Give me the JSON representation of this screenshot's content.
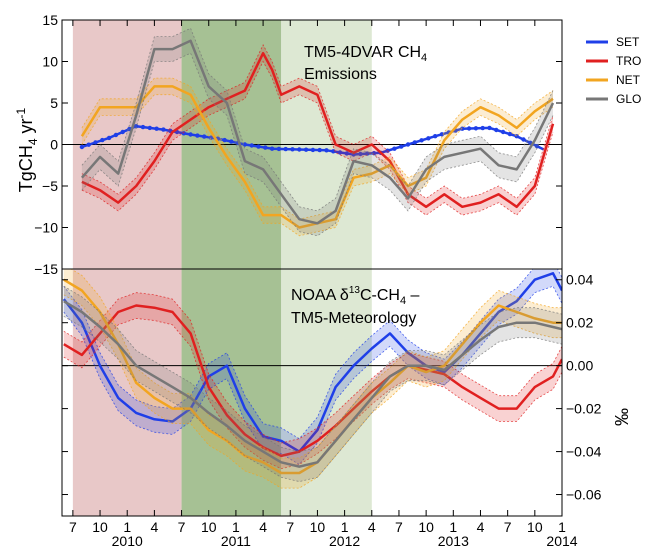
{
  "chart_data": [
    {
      "type": "line",
      "panel": "top",
      "annotation": [
        "TM5-4DVAR CH",
        "4",
        "Emissions"
      ],
      "ylabel": [
        "TgCH",
        "4",
        " yr",
        "-1"
      ],
      "ylim": [
        -15,
        15
      ],
      "yticks": [
        15,
        10,
        5,
        0,
        -5,
        -10,
        -15
      ],
      "ytick_labels": [
        "15",
        "10",
        "5",
        "0",
        "−5",
        "−10",
        "−15"
      ],
      "ytick_side": "left",
      "grid": false,
      "zero_line": true,
      "legend_placement": "outside-right",
      "shaded_periods": [
        {
          "start": 2009.5,
          "end": 2010.5,
          "color": "#e8c8c8"
        },
        {
          "start": 2010.5,
          "end": 2011.417,
          "color": "#a6c194"
        },
        {
          "start": 2011.417,
          "end": 2012.25,
          "color": "#dde8d3"
        }
      ],
      "series": [
        {
          "name": "SET",
          "color": "#1f3fe8",
          "style": "dots",
          "band": 0.0,
          "x": [
            2009.583,
            2009.833,
            2010.083,
            2010.333,
            2010.583,
            2010.833,
            2011.083,
            2011.333,
            2011.583,
            2011.833,
            2012.083,
            2012.333,
            2012.583,
            2012.833,
            2013.083,
            2013.333,
            2013.583,
            2013.833
          ],
          "y": [
            -0.3,
            0.8,
            2.2,
            1.8,
            1.2,
            0.7,
            0.0,
            -0.5,
            -0.6,
            -0.7,
            -1.2,
            -1.0,
            0.0,
            1.0,
            1.9,
            2.0,
            1.0,
            -0.6
          ]
        },
        {
          "name": "TRO",
          "color": "#e02020",
          "style": "solid",
          "band": 1.0,
          "x": [
            2009.583,
            2009.75,
            2009.917,
            2010.083,
            2010.25,
            2010.417,
            2010.583,
            2010.75,
            2010.917,
            2011.083,
            2011.25,
            2011.333,
            2011.417,
            2011.583,
            2011.75,
            2011.917,
            2012.083,
            2012.25,
            2012.417,
            2012.583,
            2012.75,
            2012.917,
            2013.083,
            2013.25,
            2013.417,
            2013.583,
            2013.75,
            2013.917
          ],
          "y": [
            -4.5,
            -5.5,
            -7.0,
            -5.0,
            -2.0,
            1.5,
            3.0,
            4.5,
            5.5,
            6.5,
            11.0,
            9.0,
            6.0,
            7.0,
            6.0,
            0.0,
            -1.0,
            0.0,
            -2.0,
            -6.0,
            -7.5,
            -6.0,
            -7.5,
            -7.0,
            -6.0,
            -7.5,
            -5.0,
            2.5
          ]
        },
        {
          "name": "NET",
          "color": "#f2a520",
          "style": "solid",
          "band": 1.0,
          "x": [
            2009.583,
            2009.75,
            2009.917,
            2010.083,
            2010.25,
            2010.417,
            2010.583,
            2010.75,
            2010.917,
            2011.083,
            2011.25,
            2011.417,
            2011.583,
            2011.75,
            2011.917,
            2012.083,
            2012.25,
            2012.417,
            2012.583,
            2012.75,
            2012.917,
            2013.083,
            2013.25,
            2013.417,
            2013.583,
            2013.75,
            2013.917
          ],
          "y": [
            1.0,
            4.5,
            4.5,
            4.5,
            7.0,
            7.0,
            6.0,
            2.0,
            -1.5,
            -4.5,
            -8.5,
            -8.5,
            -10.0,
            -9.5,
            -9.0,
            -4.0,
            -3.5,
            -2.5,
            -5.0,
            -4.0,
            0.5,
            3.0,
            4.5,
            3.5,
            2.0,
            4.0,
            5.5
          ]
        },
        {
          "name": "GLO",
          "color": "#777777",
          "style": "solid",
          "band": 1.5,
          "x": [
            2009.583,
            2009.75,
            2009.917,
            2010.083,
            2010.25,
            2010.417,
            2010.583,
            2010.75,
            2010.917,
            2011.083,
            2011.25,
            2011.417,
            2011.583,
            2011.75,
            2011.917,
            2012.083,
            2012.25,
            2012.417,
            2012.583,
            2012.75,
            2012.917,
            2013.083,
            2013.25,
            2013.417,
            2013.583,
            2013.75,
            2013.917
          ],
          "y": [
            -4.0,
            -1.5,
            -3.5,
            3.5,
            11.5,
            11.5,
            12.5,
            7.0,
            5.0,
            -2.0,
            -3.0,
            -6.0,
            -9.0,
            -9.5,
            -8.0,
            -2.0,
            -2.5,
            -4.0,
            -6.5,
            -3.0,
            -1.5,
            -1.0,
            -0.5,
            -2.5,
            -3.0,
            0.5,
            5.0
          ]
        }
      ]
    },
    {
      "type": "line",
      "panel": "bottom",
      "annotation": [
        "NOAA δ",
        "13",
        "C-CH",
        "4",
        " –",
        "TM5-Meteorology"
      ],
      "ylabel": "‰",
      "ylim": [
        -0.07,
        0.045
      ],
      "yticks": [
        0.04,
        0.02,
        0.0,
        -0.02,
        -0.04,
        -0.06
      ],
      "ytick_labels": [
        "0.04",
        "0.02",
        "0.00",
        "−0.02",
        "−0.04",
        "−0.06"
      ],
      "ytick_side": "right",
      "grid": false,
      "zero_line": true,
      "x_major_ticks": [
        {
          "x": 2009.5,
          "label": "7"
        },
        {
          "x": 2009.75,
          "label": "10"
        },
        {
          "x": 2010.0,
          "label": "1"
        },
        {
          "x": 2010.25,
          "label": "4"
        },
        {
          "x": 2010.5,
          "label": "7"
        },
        {
          "x": 2010.75,
          "label": "10"
        },
        {
          "x": 2011.0,
          "label": "1"
        },
        {
          "x": 2011.25,
          "label": "4"
        },
        {
          "x": 2011.5,
          "label": "7"
        },
        {
          "x": 2011.75,
          "label": "10"
        },
        {
          "x": 2012.0,
          "label": "1"
        },
        {
          "x": 2012.25,
          "label": "4"
        },
        {
          "x": 2012.5,
          "label": "7"
        },
        {
          "x": 2012.75,
          "label": "10"
        },
        {
          "x": 2013.0,
          "label": "1"
        },
        {
          "x": 2013.25,
          "label": "4"
        },
        {
          "x": 2013.5,
          "label": "7"
        },
        {
          "x": 2013.75,
          "label": "10"
        },
        {
          "x": 2014.0,
          "label": "1"
        }
      ],
      "year_labels": [
        {
          "x": 2010.0,
          "label": "2010"
        },
        {
          "x": 2011.0,
          "label": "2011"
        },
        {
          "x": 2012.0,
          "label": "2012"
        },
        {
          "x": 2013.0,
          "label": "2013"
        },
        {
          "x": 2014.0,
          "label": "2014"
        }
      ],
      "xlim": [
        2009.4,
        2014.0
      ],
      "series": [
        {
          "name": "SET",
          "color": "#1f3fe8",
          "band": 0.006,
          "x": [
            2009.417,
            2009.583,
            2009.75,
            2009.917,
            2010.083,
            2010.25,
            2010.417,
            2010.583,
            2010.75,
            2010.917,
            2011.083,
            2011.25,
            2011.417,
            2011.583,
            2011.75,
            2011.917,
            2012.083,
            2012.25,
            2012.417,
            2012.583,
            2012.75,
            2012.917,
            2013.083,
            2013.25,
            2013.417,
            2013.583,
            2013.75,
            2013.917,
            2014.0
          ],
          "y": [
            0.031,
            0.02,
            0.0,
            -0.015,
            -0.022,
            -0.025,
            -0.026,
            -0.02,
            -0.005,
            0.0,
            -0.02,
            -0.033,
            -0.035,
            -0.04,
            -0.03,
            -0.01,
            0.0,
            0.008,
            0.015,
            0.006,
            0.0,
            -0.003,
            0.005,
            0.015,
            0.025,
            0.03,
            0.04,
            0.043,
            0.035
          ]
        },
        {
          "name": "TRO",
          "color": "#e02020",
          "band": 0.006,
          "x": [
            2009.417,
            2009.583,
            2009.75,
            2009.917,
            2010.083,
            2010.25,
            2010.417,
            2010.583,
            2010.75,
            2010.917,
            2011.083,
            2011.25,
            2011.417,
            2011.583,
            2011.75,
            2011.917,
            2012.083,
            2012.25,
            2012.417,
            2012.583,
            2012.75,
            2012.917,
            2013.083,
            2013.25,
            2013.417,
            2013.583,
            2013.75,
            2013.917,
            2014.0
          ],
          "y": [
            0.01,
            0.005,
            0.015,
            0.025,
            0.028,
            0.027,
            0.025,
            0.015,
            -0.01,
            -0.023,
            -0.032,
            -0.038,
            -0.042,
            -0.04,
            -0.035,
            -0.028,
            -0.02,
            -0.012,
            -0.005,
            0.0,
            -0.002,
            -0.004,
            -0.01,
            -0.015,
            -0.02,
            -0.02,
            -0.01,
            -0.005,
            0.003
          ]
        },
        {
          "name": "NET",
          "color": "#f2a520",
          "band": 0.007,
          "x": [
            2009.417,
            2009.583,
            2009.75,
            2009.917,
            2010.083,
            2010.25,
            2010.417,
            2010.583,
            2010.75,
            2010.917,
            2011.083,
            2011.25,
            2011.417,
            2011.583,
            2011.75,
            2011.917,
            2012.083,
            2012.25,
            2012.417,
            2012.583,
            2012.75,
            2012.917,
            2013.083,
            2013.25,
            2013.417,
            2013.583,
            2013.75,
            2013.917,
            2014.0
          ],
          "y": [
            0.04,
            0.035,
            0.025,
            0.01,
            -0.008,
            -0.015,
            -0.02,
            -0.02,
            -0.03,
            -0.035,
            -0.042,
            -0.045,
            -0.05,
            -0.05,
            -0.045,
            -0.035,
            -0.025,
            -0.015,
            -0.008,
            0.0,
            -0.003,
            0.0,
            0.01,
            0.02,
            0.028,
            0.025,
            0.022,
            0.02,
            0.02
          ]
        },
        {
          "name": "GLO",
          "color": "#777777",
          "band": 0.007,
          "x": [
            2009.417,
            2009.583,
            2009.75,
            2009.917,
            2010.083,
            2010.25,
            2010.417,
            2010.583,
            2010.75,
            2010.917,
            2011.083,
            2011.25,
            2011.417,
            2011.583,
            2011.75,
            2011.917,
            2012.083,
            2012.25,
            2012.417,
            2012.583,
            2012.75,
            2012.917,
            2013.083,
            2013.25,
            2013.417,
            2013.583,
            2013.75,
            2013.917,
            2014.0
          ],
          "y": [
            0.03,
            0.025,
            0.018,
            0.01,
            0.0,
            -0.005,
            -0.01,
            -0.015,
            -0.022,
            -0.028,
            -0.035,
            -0.04,
            -0.045,
            -0.047,
            -0.045,
            -0.035,
            -0.025,
            -0.015,
            -0.005,
            0.0,
            0.0,
            -0.002,
            0.005,
            0.012,
            0.018,
            0.02,
            0.02,
            0.018,
            0.017
          ]
        }
      ]
    }
  ],
  "legend": [
    {
      "label": "SET",
      "color": "#1f3fe8"
    },
    {
      "label": "TRO",
      "color": "#e02020"
    },
    {
      "label": "NET",
      "color": "#f2a520"
    },
    {
      "label": "GLO",
      "color": "#777777"
    }
  ]
}
